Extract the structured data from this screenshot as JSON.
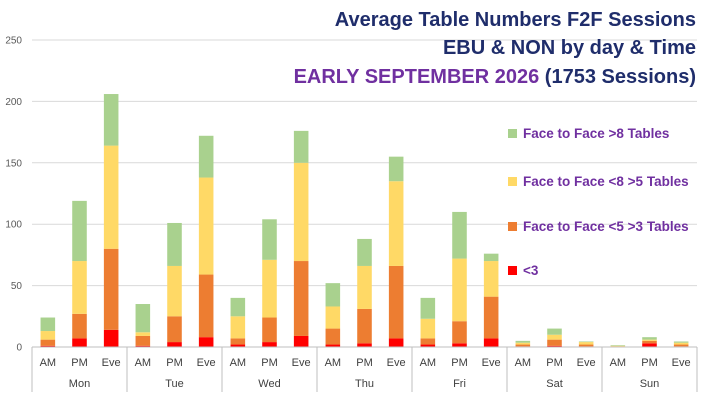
{
  "chart_data": {
    "type": "bar",
    "stacked": true,
    "title_line1": "Average Table Numbers F2F Sessions",
    "title_line2": "EBU & NON  by day & Time",
    "title_line3_part1": "EARLY SEPTEMBER 2026",
    "title_line3_part2": "(1753 Sessions)",
    "xlabel": "",
    "ylabel": "",
    "ylim": [
      0,
      250
    ],
    "yticks": [
      "0",
      "50",
      "100",
      "150",
      "200",
      "250"
    ],
    "grid": true,
    "legend_position": "right",
    "days": [
      "Mon",
      "Tue",
      "Wed",
      "Thu",
      "Fri",
      "Sat",
      "Sun"
    ],
    "times": [
      "AM",
      "PM",
      "Eve"
    ],
    "categories": [
      "Mon AM",
      "Mon PM",
      "Mon Eve",
      "Tue AM",
      "Tue PM",
      "Tue Eve",
      "Wed AM",
      "Wed PM",
      "Wed Eve",
      "Thu AM",
      "Thu PM",
      "Thu Eve",
      "Fri AM",
      "Fri PM",
      "Fri Eve",
      "Sat AM",
      "Sat PM",
      "Sat Eve",
      "Sun AM",
      "Sun PM",
      "Sun Eve"
    ],
    "series": [
      {
        "name": "<3",
        "color": "#ff0000",
        "values": [
          1,
          7,
          14,
          1,
          4,
          8,
          2,
          4,
          9,
          2,
          3,
          7,
          2,
          3,
          7,
          0.5,
          1,
          0.5,
          0,
          3,
          0.5
        ]
      },
      {
        "name": "Face to Face <5 >3 Tables",
        "color": "#ed7d31",
        "values": [
          5,
          20,
          66,
          8,
          21,
          51,
          5,
          20,
          61,
          13,
          28,
          59,
          5,
          18,
          34,
          1.5,
          5,
          1.5,
          0.5,
          2,
          1.5
        ]
      },
      {
        "name": "Face to Face <8 >5 Tables",
        "color": "#ffd966",
        "values": [
          7,
          43,
          84,
          3,
          41,
          79,
          18,
          47,
          80,
          18,
          35,
          69,
          16,
          51,
          29,
          1.5,
          4,
          2,
          0.5,
          1,
          1.5
        ]
      },
      {
        "name": "Face to Face >8 Tables",
        "color": "#a9d18e",
        "values": [
          11,
          49,
          42,
          23,
          35,
          34,
          15,
          33,
          26,
          19,
          22,
          20,
          17,
          38,
          6,
          1.5,
          5,
          0.5,
          0.5,
          2,
          1
        ]
      }
    ]
  }
}
